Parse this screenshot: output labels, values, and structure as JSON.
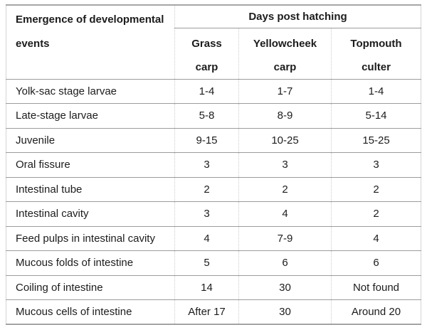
{
  "table": {
    "corner_header": "Emergence of developmental events",
    "group_header": "Days post hatching",
    "columns": [
      "Grass carp",
      "Yellowcheek carp",
      "Topmouth culter"
    ],
    "rows": [
      {
        "label": "Yolk-sac stage larvae",
        "values": [
          "1-4",
          "1-7",
          "1-4"
        ]
      },
      {
        "label": "Late-stage larvae",
        "values": [
          "5-8",
          "8-9",
          "5-14"
        ]
      },
      {
        "label": "Juvenile",
        "values": [
          "9-15",
          "10-25",
          "15-25"
        ]
      },
      {
        "label": "Oral fissure",
        "values": [
          "3",
          "3",
          "3"
        ]
      },
      {
        "label": "Intestinal tube",
        "values": [
          "2",
          "2",
          "2"
        ]
      },
      {
        "label": "Intestinal cavity",
        "values": [
          "3",
          "4",
          "2"
        ]
      },
      {
        "label": "Feed pulps in intestinal cavity",
        "values": [
          "4",
          "7-9",
          "4"
        ]
      },
      {
        "label": "Mucous folds of intestine",
        "values": [
          "5",
          "6",
          "6"
        ]
      },
      {
        "label": "Coiling of intestine",
        "values": [
          "14",
          "30",
          "Not found"
        ]
      },
      {
        "label": "Mucous cells of intestine",
        "values": [
          "After 17",
          "30",
          "Around 20"
        ]
      }
    ]
  },
  "colors": {
    "background": "#ffffff",
    "text": "#1c1c1c",
    "border_strong": "#9c9c9c",
    "border_outer": "#a6a6a6",
    "border_light": "#cccccc"
  }
}
